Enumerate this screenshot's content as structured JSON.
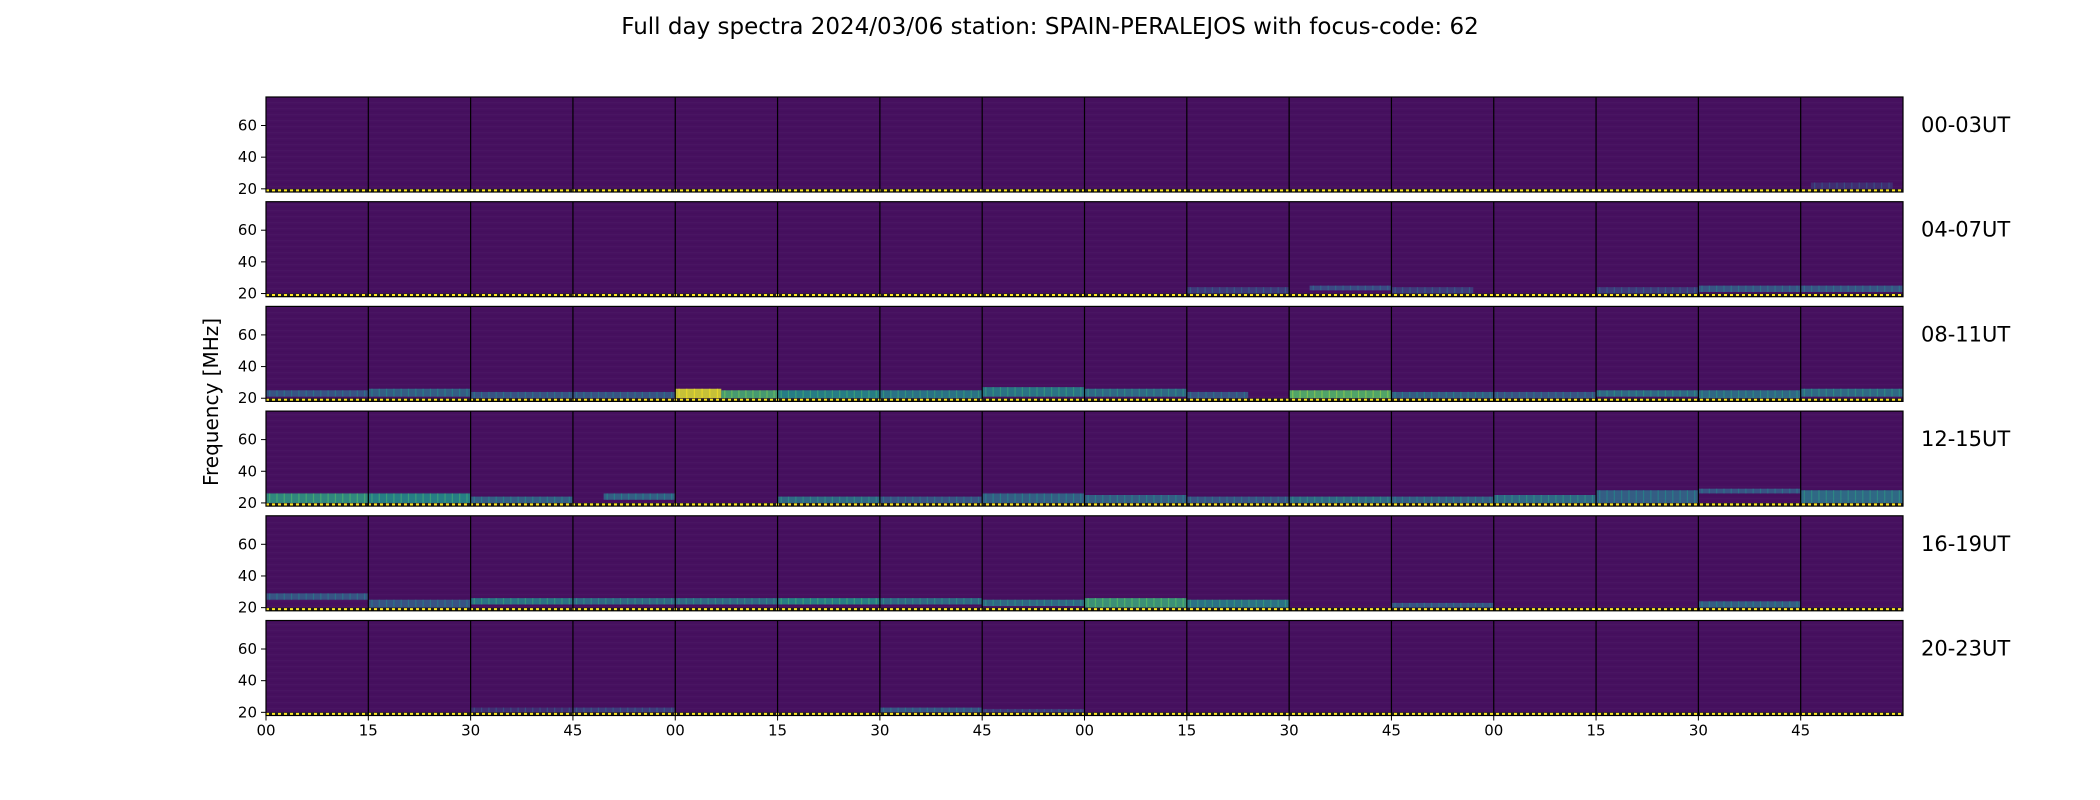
{
  "chart_data": {
    "type": "heatmap",
    "title": "Full day spectra 2024/03/06 station: SPAIN-PERALEJOS with focus-code: 62",
    "ylabel": "Frequency [MHz]",
    "xlabel": "",
    "y_ticks": [
      20,
      40,
      60
    ],
    "ylim": [
      18,
      78
    ],
    "x_tick_labels": [
      "00",
      "15",
      "30",
      "45",
      "00",
      "15",
      "30",
      "45",
      "00",
      "15",
      "30",
      "45",
      "00",
      "15",
      "30",
      "45"
    ],
    "x_unit_minutes_per_panel": 15,
    "panels_per_row": 16,
    "colormap": "viridis",
    "colormap_stops": [
      "#440154",
      "#3b528b",
      "#21918c",
      "#5ec962",
      "#fde725"
    ],
    "background_color": "#46105f",
    "rows": [
      {
        "label": "00-03UT",
        "hours": [
          0,
          3
        ],
        "emission": [
          {
            "panel": 15,
            "start": 0.1,
            "end": 0.9,
            "f_low": 20,
            "f_high": 24,
            "intensity": 0.15
          }
        ]
      },
      {
        "label": "04-07UT",
        "hours": [
          4,
          7
        ],
        "emission": [
          {
            "panel": 9,
            "start": 0.0,
            "end": 1.0,
            "f_low": 20,
            "f_high": 24,
            "intensity": 0.2
          },
          {
            "panel": 10,
            "start": 0.2,
            "end": 1.0,
            "f_low": 22,
            "f_high": 25,
            "intensity": 0.25
          },
          {
            "panel": 11,
            "start": 0.0,
            "end": 0.8,
            "f_low": 20,
            "f_high": 24,
            "intensity": 0.2
          },
          {
            "panel": 13,
            "start": 0.0,
            "end": 1.0,
            "f_low": 20,
            "f_high": 24,
            "intensity": 0.2
          },
          {
            "panel": 14,
            "start": 0.0,
            "end": 1.0,
            "f_low": 21,
            "f_high": 25,
            "intensity": 0.3
          },
          {
            "panel": 15,
            "start": 0.0,
            "end": 1.0,
            "f_low": 21,
            "f_high": 25,
            "intensity": 0.3
          }
        ]
      },
      {
        "label": "08-11UT",
        "hours": [
          8,
          11
        ],
        "emission": [
          {
            "panel": 0,
            "start": 0.0,
            "end": 1.0,
            "f_low": 21,
            "f_high": 25,
            "intensity": 0.3
          },
          {
            "panel": 1,
            "start": 0.0,
            "end": 1.0,
            "f_low": 21,
            "f_high": 26,
            "intensity": 0.35
          },
          {
            "panel": 2,
            "start": 0.0,
            "end": 1.0,
            "f_low": 20,
            "f_high": 24,
            "intensity": 0.3
          },
          {
            "panel": 3,
            "start": 0.0,
            "end": 1.0,
            "f_low": 20,
            "f_high": 24,
            "intensity": 0.3
          },
          {
            "panel": 4,
            "start": 0.0,
            "end": 0.45,
            "f_low": 20,
            "f_high": 26,
            "intensity": 0.95
          },
          {
            "panel": 4,
            "start": 0.45,
            "end": 1.0,
            "f_low": 20,
            "f_high": 25,
            "intensity": 0.65
          },
          {
            "panel": 5,
            "start": 0.0,
            "end": 1.0,
            "f_low": 20,
            "f_high": 25,
            "intensity": 0.5
          },
          {
            "panel": 6,
            "start": 0.0,
            "end": 1.0,
            "f_low": 20,
            "f_high": 25,
            "intensity": 0.45
          },
          {
            "panel": 7,
            "start": 0.0,
            "end": 1.0,
            "f_low": 21,
            "f_high": 27,
            "intensity": 0.45
          },
          {
            "panel": 8,
            "start": 0.0,
            "end": 1.0,
            "f_low": 21,
            "f_high": 26,
            "intensity": 0.4
          },
          {
            "panel": 9,
            "start": 0.0,
            "end": 0.6,
            "f_low": 20,
            "f_high": 24,
            "intensity": 0.3
          },
          {
            "panel": 10,
            "start": 0.0,
            "end": 1.0,
            "f_low": 20,
            "f_high": 25,
            "intensity": 0.7
          },
          {
            "panel": 11,
            "start": 0.0,
            "end": 1.0,
            "f_low": 20,
            "f_high": 24,
            "intensity": 0.35
          },
          {
            "panel": 12,
            "start": 0.0,
            "end": 1.0,
            "f_low": 20,
            "f_high": 24,
            "intensity": 0.3
          },
          {
            "panel": 13,
            "start": 0.0,
            "end": 1.0,
            "f_low": 21,
            "f_high": 25,
            "intensity": 0.4
          },
          {
            "panel": 14,
            "start": 0.0,
            "end": 1.0,
            "f_low": 20,
            "f_high": 25,
            "intensity": 0.4
          },
          {
            "panel": 15,
            "start": 0.0,
            "end": 1.0,
            "f_low": 21,
            "f_high": 26,
            "intensity": 0.4
          }
        ]
      },
      {
        "label": "12-15UT",
        "hours": [
          12,
          15
        ],
        "emission": [
          {
            "panel": 0,
            "start": 0.0,
            "end": 1.0,
            "f_low": 20,
            "f_high": 26,
            "intensity": 0.55
          },
          {
            "panel": 1,
            "start": 0.0,
            "end": 1.0,
            "f_low": 20,
            "f_high": 26,
            "intensity": 0.5
          },
          {
            "panel": 2,
            "start": 0.0,
            "end": 1.0,
            "f_low": 20,
            "f_high": 24,
            "intensity": 0.35
          },
          {
            "panel": 3,
            "start": 0.3,
            "end": 1.0,
            "f_low": 22,
            "f_high": 26,
            "intensity": 0.35
          },
          {
            "panel": 5,
            "start": 0.0,
            "end": 1.0,
            "f_low": 20,
            "f_high": 24,
            "intensity": 0.4
          },
          {
            "panel": 6,
            "start": 0.0,
            "end": 1.0,
            "f_low": 20,
            "f_high": 24,
            "intensity": 0.3
          },
          {
            "panel": 7,
            "start": 0.0,
            "end": 1.0,
            "f_low": 20,
            "f_high": 26,
            "intensity": 0.35
          },
          {
            "panel": 8,
            "start": 0.0,
            "end": 1.0,
            "f_low": 20,
            "f_high": 25,
            "intensity": 0.35
          },
          {
            "panel": 9,
            "start": 0.0,
            "end": 1.0,
            "f_low": 20,
            "f_high": 24,
            "intensity": 0.3
          },
          {
            "panel": 10,
            "start": 0.0,
            "end": 1.0,
            "f_low": 20,
            "f_high": 24,
            "intensity": 0.4
          },
          {
            "panel": 11,
            "start": 0.0,
            "end": 1.0,
            "f_low": 20,
            "f_high": 24,
            "intensity": 0.35
          },
          {
            "panel": 12,
            "start": 0.0,
            "end": 1.0,
            "f_low": 20,
            "f_high": 25,
            "intensity": 0.4
          },
          {
            "panel": 13,
            "start": 0.0,
            "end": 1.0,
            "f_low": 20,
            "f_high": 28,
            "intensity": 0.35
          },
          {
            "panel": 14,
            "start": 0.0,
            "end": 1.0,
            "f_low": 26,
            "f_high": 29,
            "intensity": 0.3
          },
          {
            "panel": 15,
            "start": 0.0,
            "end": 1.0,
            "f_low": 20,
            "f_high": 28,
            "intensity": 0.4
          }
        ]
      },
      {
        "label": "16-19UT",
        "hours": [
          16,
          19
        ],
        "emission": [
          {
            "panel": 0,
            "start": 0.0,
            "end": 1.0,
            "f_low": 25,
            "f_high": 29,
            "intensity": 0.3
          },
          {
            "panel": 1,
            "start": 0.0,
            "end": 1.0,
            "f_low": 20,
            "f_high": 25,
            "intensity": 0.3
          },
          {
            "panel": 2,
            "start": 0.0,
            "end": 1.0,
            "f_low": 22,
            "f_high": 26,
            "intensity": 0.45
          },
          {
            "panel": 3,
            "start": 0.0,
            "end": 1.0,
            "f_low": 22,
            "f_high": 26,
            "intensity": 0.4
          },
          {
            "panel": 4,
            "start": 0.0,
            "end": 1.0,
            "f_low": 22,
            "f_high": 26,
            "intensity": 0.4
          },
          {
            "panel": 5,
            "start": 0.0,
            "end": 1.0,
            "f_low": 22,
            "f_high": 26,
            "intensity": 0.5
          },
          {
            "panel": 6,
            "start": 0.0,
            "end": 1.0,
            "f_low": 22,
            "f_high": 26,
            "intensity": 0.4
          },
          {
            "panel": 7,
            "start": 0.0,
            "end": 1.0,
            "f_low": 21,
            "f_high": 25,
            "intensity": 0.4
          },
          {
            "panel": 8,
            "start": 0.0,
            "end": 1.0,
            "f_low": 20,
            "f_high": 26,
            "intensity": 0.6
          },
          {
            "panel": 9,
            "start": 0.0,
            "end": 1.0,
            "f_low": 20,
            "f_high": 25,
            "intensity": 0.45
          },
          {
            "panel": 11,
            "start": 0.0,
            "end": 1.0,
            "f_low": 20,
            "f_high": 23,
            "intensity": 0.3
          },
          {
            "panel": 14,
            "start": 0.0,
            "end": 1.0,
            "f_low": 20,
            "f_high": 24,
            "intensity": 0.35
          }
        ]
      },
      {
        "label": "20-23UT",
        "hours": [
          20,
          23
        ],
        "emission": [
          {
            "panel": 2,
            "start": 0.0,
            "end": 1.0,
            "f_low": 20,
            "f_high": 23,
            "intensity": 0.15
          },
          {
            "panel": 3,
            "start": 0.0,
            "end": 1.0,
            "f_low": 20,
            "f_high": 23,
            "intensity": 0.2
          },
          {
            "panel": 6,
            "start": 0.0,
            "end": 1.0,
            "f_low": 20,
            "f_high": 23,
            "intensity": 0.3
          },
          {
            "panel": 7,
            "start": 0.0,
            "end": 1.0,
            "f_low": 20,
            "f_high": 22,
            "intensity": 0.2
          }
        ]
      }
    ]
  }
}
